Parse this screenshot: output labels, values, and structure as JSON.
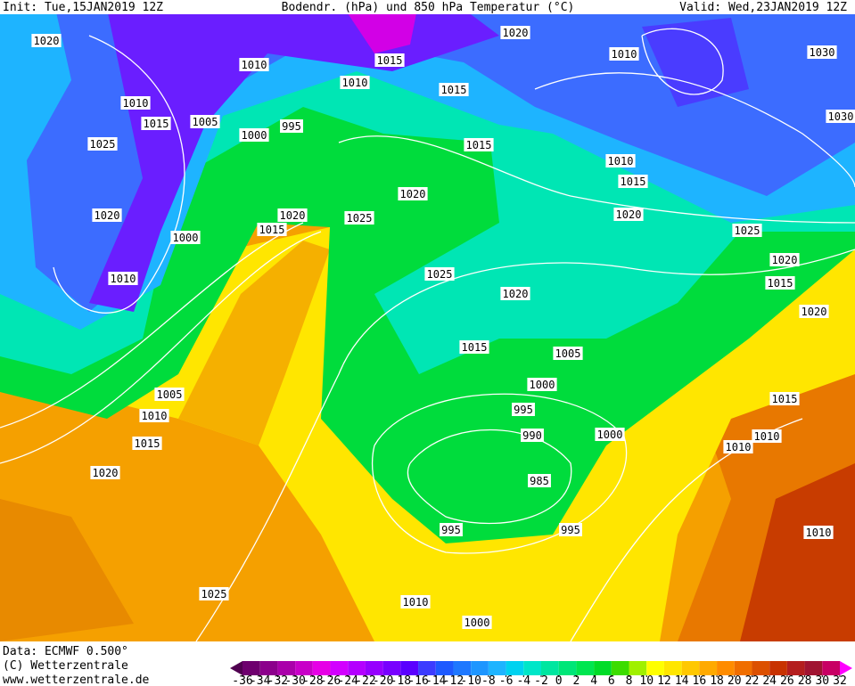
{
  "header": {
    "init": "Init: Tue,15JAN2019 12Z",
    "title": "Bodendr. (hPa) und 850 hPa Temperatur (°C)",
    "valid": "Valid: Wed,23JAN2019 12Z"
  },
  "footer": {
    "data": "Data: ECMWF  0.500°",
    "copyright": "(C) Wetterzentrale",
    "url": "www.wetterzentrale.de"
  },
  "colorbar": {
    "ticks": [
      -36,
      -34,
      -32,
      -30,
      -28,
      -26,
      -24,
      -22,
      -20,
      -18,
      -16,
      -14,
      -12,
      -10,
      -8,
      -6,
      -4,
      -2,
      0,
      2,
      4,
      6,
      8,
      10,
      12,
      14,
      16,
      18,
      20,
      22,
      24,
      26,
      28,
      30,
      32
    ],
    "colors": [
      "#6e006e",
      "#8c008c",
      "#aa00aa",
      "#c800c8",
      "#e600e6",
      "#d200ff",
      "#b400ff",
      "#9600ff",
      "#7800ff",
      "#5a00ff",
      "#3c3cff",
      "#1e5aff",
      "#1e78ff",
      "#1e96ff",
      "#1eb4ff",
      "#00d2f0",
      "#00e6c8",
      "#00e6a0",
      "#00e678",
      "#00e650",
      "#00dc28",
      "#3cdc00",
      "#a0f000",
      "#ffff00",
      "#ffe600",
      "#ffc800",
      "#ffaa00",
      "#ff8c00",
      "#f06e00",
      "#dc5000",
      "#c83200",
      "#b41e1e",
      "#a01432",
      "#c80064"
    ],
    "low_color": "#500050",
    "high_color": "#ff00ff"
  },
  "isobar_labels": [
    1020,
    1010,
    1015,
    1020,
    1010,
    1030,
    1010,
    1015,
    1005,
    1000,
    995,
    1015,
    1025,
    1015,
    1010,
    1015,
    1020,
    1020,
    1020,
    1025,
    1020,
    1000,
    1015,
    1025,
    1025,
    1020,
    1010,
    1015,
    1020,
    1020,
    1015,
    1005,
    1005,
    1000,
    1015,
    1010,
    995,
    990,
    1000,
    1010,
    1015,
    1010,
    1020,
    985,
    995,
    995,
    1010,
    1025,
    1010,
    1000,
    1030,
    1010
  ]
}
